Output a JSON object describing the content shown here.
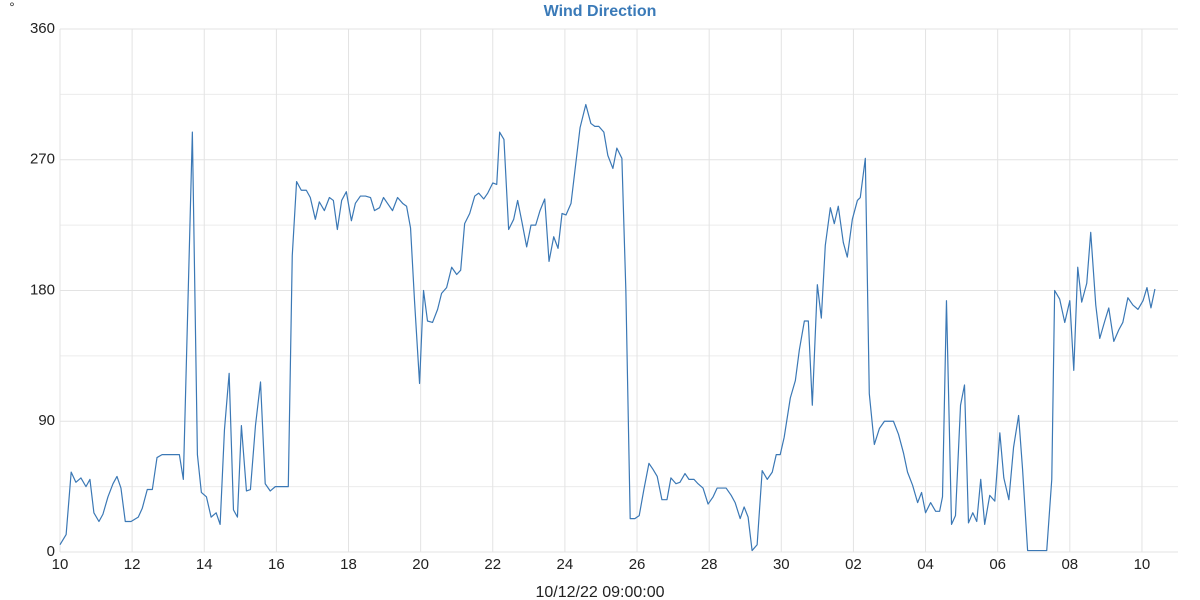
{
  "chart_data": {
    "type": "line",
    "title": "Wind Direction",
    "ylabel": "°",
    "xlabel": "10/12/22 09:00:00",
    "color": "#3b78b5",
    "grid": true,
    "xlim": [
      0,
      31
    ],
    "xticks": [
      {
        "value": 0,
        "label": "10"
      },
      {
        "value": 2,
        "label": "12"
      },
      {
        "value": 4,
        "label": "14"
      },
      {
        "value": 6,
        "label": "16"
      },
      {
        "value": 8,
        "label": "18"
      },
      {
        "value": 10,
        "label": "20"
      },
      {
        "value": 12,
        "label": "22"
      },
      {
        "value": 14,
        "label": "24"
      },
      {
        "value": 16,
        "label": "26"
      },
      {
        "value": 18,
        "label": "28"
      },
      {
        "value": 20,
        "label": "30"
      },
      {
        "value": 22,
        "label": "02"
      },
      {
        "value": 24,
        "label": "04"
      },
      {
        "value": 26,
        "label": "06"
      },
      {
        "value": 28,
        "label": "08"
      },
      {
        "value": 30,
        "label": "10"
      }
    ],
    "ylim": [
      0,
      360
    ],
    "yticks": [
      0,
      90,
      180,
      270,
      360
    ],
    "minor_yticks": [
      45,
      135,
      225,
      315
    ],
    "x": [
      0,
      0.17,
      0.31,
      0.44,
      0.58,
      0.72,
      0.83,
      0.94,
      1.08,
      1.19,
      1.33,
      1.47,
      1.58,
      1.69,
      1.81,
      1.97,
      2.17,
      2.28,
      2.42,
      2.56,
      2.69,
      2.83,
      2.97,
      3.17,
      3.31,
      3.42,
      3.67,
      3.81,
      3.92,
      4.06,
      4.19,
      4.33,
      4.44,
      4.56,
      4.69,
      4.81,
      4.92,
      5.03,
      5.17,
      5.28,
      5.42,
      5.56,
      5.69,
      5.83,
      5.97,
      6.19,
      6.33,
      6.44,
      6.56,
      6.69,
      6.83,
      6.94,
      7.08,
      7.19,
      7.33,
      7.47,
      7.58,
      7.69,
      7.81,
      7.94,
      8.08,
      8.19,
      8.33,
      8.47,
      8.61,
      8.72,
      8.86,
      8.97,
      9.08,
      9.22,
      9.36,
      9.5,
      9.61,
      9.72,
      9.83,
      9.97,
      10.08,
      10.19,
      10.33,
      10.47,
      10.58,
      10.72,
      10.86,
      11,
      11.11,
      11.22,
      11.36,
      11.5,
      11.61,
      11.75,
      11.86,
      12,
      12.11,
      12.19,
      12.31,
      12.44,
      12.58,
      12.69,
      12.81,
      12.94,
      13.06,
      13.19,
      13.31,
      13.44,
      13.56,
      13.69,
      13.81,
      13.92,
      14.03,
      14.17,
      14.28,
      14.42,
      14.58,
      14.72,
      14.83,
      14.94,
      15.08,
      15.19,
      15.33,
      15.44,
      15.58,
      15.69,
      15.81,
      15.94,
      16.06,
      16.19,
      16.33,
      16.44,
      16.56,
      16.69,
      16.83,
      16.94,
      17.08,
      17.19,
      17.33,
      17.44,
      17.58,
      17.69,
      17.83,
      17.97,
      18.11,
      18.22,
      18.36,
      18.47,
      18.61,
      18.72,
      18.86,
      18.97,
      19.08,
      19.19,
      19.33,
      19.47,
      19.61,
      19.75,
      19.86,
      19.97,
      20.08,
      20.25,
      20.39,
      20.5,
      20.64,
      20.75,
      20.86,
      21,
      21.11,
      21.22,
      21.36,
      21.47,
      21.58,
      21.72,
      21.83,
      21.97,
      22.11,
      22.19,
      22.33,
      22.44,
      22.58,
      22.72,
      22.86,
      23,
      23.11,
      23.25,
      23.39,
      23.5,
      23.64,
      23.78,
      23.89,
      24,
      24.14,
      24.28,
      24.39,
      24.47,
      24.58,
      24.72,
      24.83,
      24.97,
      25.08,
      25.19,
      25.31,
      25.42,
      25.53,
      25.64,
      25.78,
      25.92,
      26.06,
      26.17,
      26.31,
      26.44,
      26.58,
      26.69,
      26.83,
      26.97,
      27.11,
      27.22,
      27.36,
      27.5,
      27.58,
      27.72,
      27.86,
      28,
      28.11,
      28.22,
      28.33,
      28.47,
      28.58,
      28.72,
      28.83,
      28.97,
      29.08,
      29.22,
      29.36,
      29.47,
      29.61,
      29.75,
      29.89,
      30.03,
      30.14,
      30.25,
      30.36
    ],
    "values": [
      5,
      12,
      55,
      48,
      51,
      45,
      50,
      27,
      21,
      26,
      38,
      47,
      52,
      44,
      21,
      21,
      24,
      30,
      43,
      43,
      65,
      67,
      67,
      67,
      67,
      50,
      289,
      67,
      41,
      38,
      24,
      27,
      19,
      84,
      123,
      29,
      24,
      87,
      42,
      43,
      87,
      117,
      47,
      42,
      45,
      45,
      45,
      204,
      255,
      249,
      249,
      244,
      229,
      241,
      235,
      244,
      242,
      222,
      242,
      248,
      228,
      240,
      245,
      245,
      244,
      235,
      237,
      244,
      240,
      235,
      244,
      240,
      238,
      223,
      173,
      116,
      180,
      159,
      158,
      167,
      178,
      182,
      196,
      191,
      194,
      226,
      233,
      245,
      247,
      243,
      247,
      254,
      253,
      289,
      284,
      222,
      229,
      242,
      227,
      210,
      225,
      225,
      235,
      243,
      200,
      217,
      209,
      233,
      232,
      240,
      263,
      292,
      308,
      295,
      293,
      293,
      289,
      273,
      264,
      278,
      271,
      180,
      23,
      23,
      25,
      43,
      61,
      57,
      52,
      36,
      36,
      51,
      47,
      48,
      54,
      50,
      50,
      47,
      44,
      33,
      38,
      44,
      44,
      44,
      39,
      34,
      23,
      31,
      24,
      1,
      5,
      56,
      50,
      55,
      67,
      67,
      79,
      106,
      118,
      139,
      159,
      159,
      101,
      184,
      161,
      211,
      237,
      226,
      238,
      213,
      203,
      229,
      242,
      244,
      271,
      109,
      74,
      85,
      90,
      90,
      90,
      81,
      68,
      55,
      46,
      34,
      41,
      27,
      34,
      28,
      28,
      38,
      173,
      19,
      25,
      101,
      115,
      20,
      27,
      21,
      50,
      19,
      39,
      35,
      82,
      51,
      36,
      72,
      94,
      57,
      1,
      1,
      1,
      1,
      1,
      50,
      180,
      174,
      158,
      173,
      125,
      196,
      172,
      185,
      220,
      170,
      147,
      159,
      168,
      145,
      153,
      158,
      175,
      170,
      167,
      173,
      182,
      168,
      181
    ]
  }
}
